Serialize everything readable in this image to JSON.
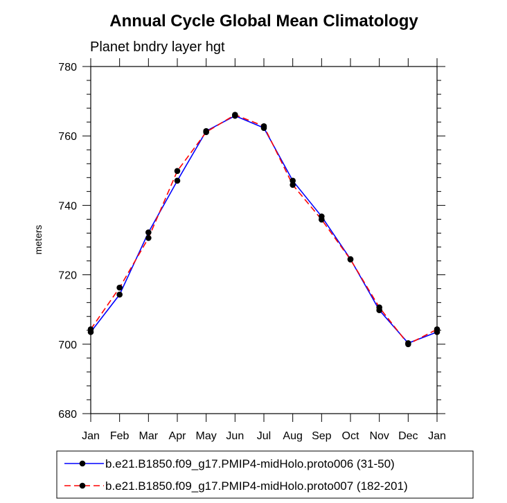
{
  "chart_data": {
    "type": "line",
    "title": "Annual Cycle Global Mean Climatology",
    "subtitle": "Planet bndry layer hgt",
    "xlabel": "",
    "ylabel": "meters",
    "categories": [
      "Jan",
      "Feb",
      "Mar",
      "Apr",
      "May",
      "Jun",
      "Jul",
      "Aug",
      "Sep",
      "Oct",
      "Nov",
      "Dec",
      "Jan"
    ],
    "ylim": [
      680,
      780
    ],
    "yticks": [
      680,
      700,
      720,
      740,
      760,
      780
    ],
    "yminor_step": 4,
    "grid": false,
    "legend_position": "bottom",
    "series": [
      {
        "name": "b.e21.B1850.f09_g17.PMIP4-midHolo.proto006 (31-50)",
        "color": "#0000ff",
        "style": "solid",
        "values": [
          703.5,
          714.3,
          732.2,
          747.1,
          761.4,
          765.8,
          762.3,
          747.1,
          736.8,
          724.5,
          709.8,
          700.3,
          703.5
        ]
      },
      {
        "name": "b.e21.B1850.f09_g17.PMIP4-midHolo.proto007 (182-201)",
        "color": "#ff0000",
        "style": "dashed",
        "values": [
          704.3,
          716.3,
          730.6,
          749.9,
          761.1,
          766.1,
          762.8,
          745.9,
          735.9,
          724.4,
          710.6,
          700.0,
          704.3
        ]
      }
    ]
  }
}
